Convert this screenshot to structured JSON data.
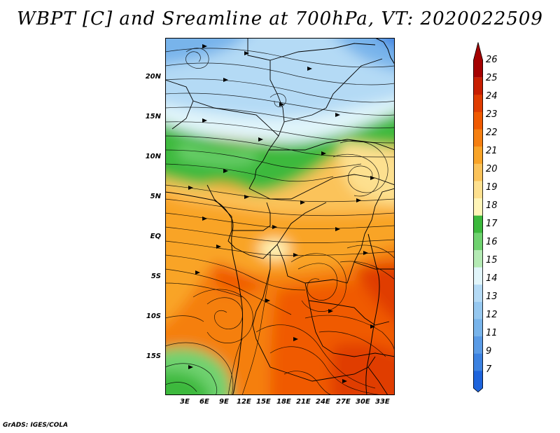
{
  "title": "WBPT [C] and Sreamline at 700hPa, VT: 2020022509",
  "credit": "GrADS: IGES/COLA",
  "map": {
    "lat_labels": [
      "20N",
      "15N",
      "10N",
      "5N",
      "EQ",
      "5S",
      "10S",
      "15S"
    ],
    "lon_labels": [
      "3E",
      "6E",
      "9E",
      "12E",
      "15E",
      "18E",
      "21E",
      "24E",
      "27E",
      "30E",
      "33E"
    ]
  },
  "colorbar": {
    "labels": [
      "26",
      "25",
      "24",
      "23",
      "22",
      "21",
      "20",
      "19",
      "18",
      "17",
      "16",
      "15",
      "14",
      "13",
      "12",
      "11",
      "9",
      "7"
    ],
    "colors": [
      "#a50000",
      "#c81e00",
      "#e03c00",
      "#f05a00",
      "#f57f11",
      "#f9a428",
      "#fbc35a",
      "#fde08f",
      "#fff5b8",
      "#3cb93c",
      "#6fd26f",
      "#b4eab4",
      "#e1f5fa",
      "#b4daf5",
      "#96c8f0",
      "#78b4eb",
      "#5a9be6",
      "#3c82e1",
      "#1e64dc"
    ]
  }
}
